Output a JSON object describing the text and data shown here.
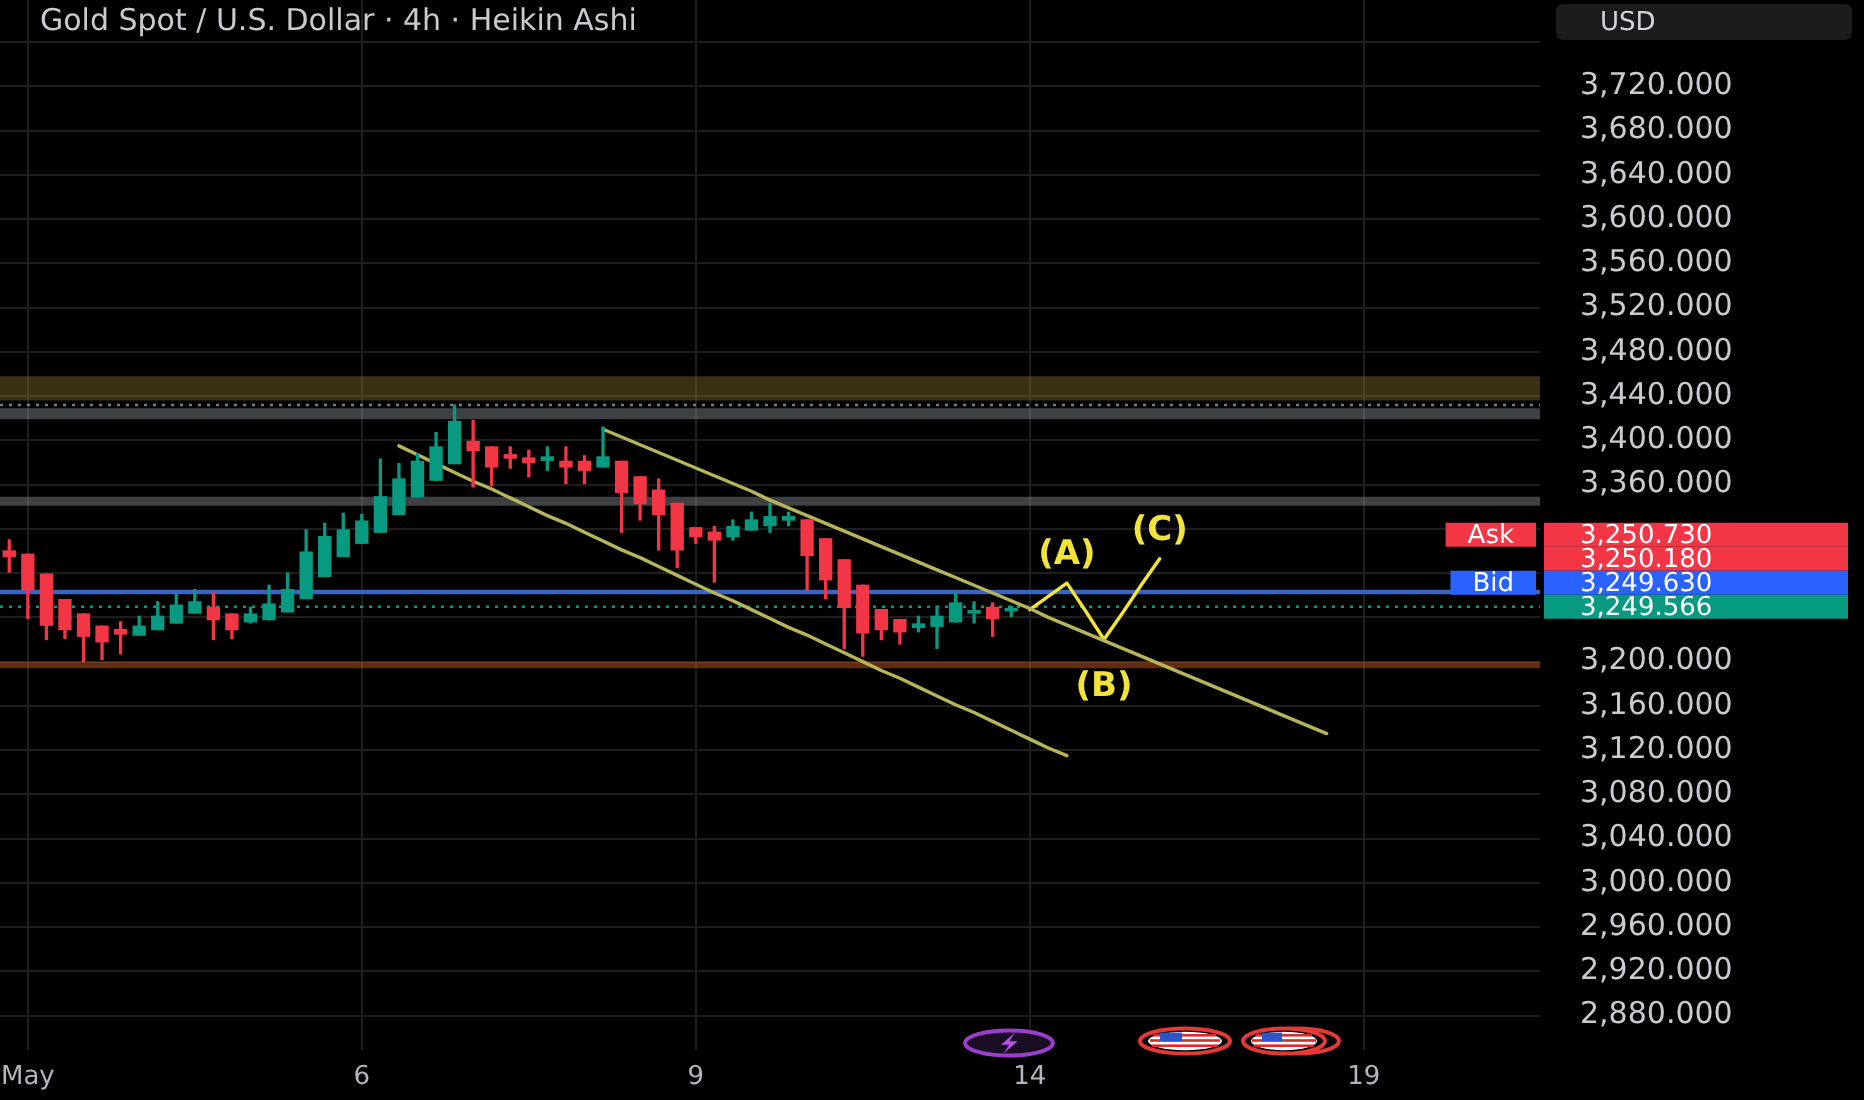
{
  "chart_data": {
    "type": "candlestick",
    "title": "Gold Spot / U.S. Dollar · 4h · Heikin Ashi",
    "ylabel": "USD",
    "categories": [
      null,
      "May",
      null,
      null,
      null,
      null,
      null,
      null,
      null,
      null,
      null,
      null,
      null,
      null,
      null,
      null,
      null,
      null,
      null,
      "6",
      null,
      null,
      null,
      null,
      null,
      null,
      null,
      null,
      null,
      null,
      null,
      null,
      null,
      null,
      null,
      null,
      null,
      "9",
      null,
      null,
      null,
      null,
      null,
      null,
      null,
      null,
      null,
      null,
      null,
      null,
      null,
      null,
      null,
      null,
      null,
      "14",
      null,
      null,
      null,
      null,
      null,
      null,
      null,
      null,
      null,
      null,
      null,
      null,
      null,
      null,
      null,
      null,
      null,
      "19",
      null,
      null,
      null,
      null,
      null,
      null,
      null,
      null,
      null
    ],
    "ohlc": [
      [
        3300,
        3310,
        3281,
        3295
      ],
      [
        3297,
        3297,
        3239,
        3265
      ],
      [
        3279,
        3279,
        3220,
        3233
      ],
      [
        3256,
        3256,
        3221,
        3229
      ],
      [
        3243,
        3243,
        3200,
        3223
      ],
      [
        3232,
        3232,
        3202,
        3218
      ],
      [
        3229,
        3236,
        3207,
        3225
      ],
      [
        3224,
        3241,
        3224,
        3232
      ],
      [
        3229,
        3254,
        3229,
        3241
      ],
      [
        3235,
        3261,
        3235,
        3251
      ],
      [
        3244,
        3265,
        3244,
        3254
      ],
      [
        3249,
        3262,
        3220,
        3238
      ],
      [
        3243,
        3243,
        3221,
        3229
      ],
      [
        3236,
        3249,
        3235,
        3243
      ],
      [
        3238,
        3269,
        3238,
        3252
      ],
      [
        3245,
        3280,
        3245,
        3265
      ],
      [
        3257,
        3319,
        3257,
        3299
      ],
      [
        3277,
        3325,
        3277,
        3313
      ],
      [
        3295,
        3334,
        3295,
        3319
      ],
      [
        3307,
        3333,
        3307,
        3327
      ],
      [
        3317,
        3383,
        3317,
        3349
      ],
      [
        3333,
        3379,
        3333,
        3365
      ],
      [
        3349,
        3388,
        3349,
        3381
      ],
      [
        3364,
        3407,
        3364,
        3394
      ],
      [
        3379,
        3432,
        3379,
        3417
      ],
      [
        3399,
        3418,
        3358,
        3391
      ],
      [
        3394,
        3394,
        3359,
        3376
      ],
      [
        3387,
        3394,
        3375,
        3384
      ],
      [
        3384,
        3391,
        3367,
        3380
      ],
      [
        3382,
        3394,
        3373,
        3385
      ],
      [
        3381,
        3394,
        3361,
        3376
      ],
      [
        3381,
        3386,
        3361,
        3373
      ],
      [
        3376,
        3412,
        3376,
        3385
      ],
      [
        3381,
        3381,
        3317,
        3353
      ],
      [
        3367,
        3367,
        3328,
        3343
      ],
      [
        3355,
        3365,
        3301,
        3333
      ],
      [
        3343,
        3343,
        3285,
        3301
      ],
      [
        3321,
        3321,
        3307,
        3313
      ],
      [
        3317,
        3322,
        3272,
        3310
      ],
      [
        3313,
        3328,
        3310,
        3322
      ],
      [
        3319,
        3335,
        3319,
        3328
      ],
      [
        3323,
        3343,
        3317,
        3331
      ],
      [
        3328,
        3335,
        3323,
        3331
      ],
      [
        3328,
        3328,
        3265,
        3296
      ],
      [
        3311,
        3311,
        3257,
        3274
      ],
      [
        3292,
        3292,
        3212,
        3249
      ],
      [
        3269,
        3269,
        3205,
        3226
      ],
      [
        3247,
        3247,
        3220,
        3229
      ],
      [
        3238,
        3238,
        3216,
        3227
      ],
      [
        3231,
        3241,
        3227,
        3234
      ],
      [
        3232,
        3250,
        3212,
        3241
      ],
      [
        3236,
        3262,
        3236,
        3253
      ],
      [
        3244,
        3254,
        3235,
        3246
      ],
      [
        3249,
        3253,
        3223,
        3239
      ],
      [
        3246,
        3250,
        3241,
        3248
      ],
      null,
      null,
      null,
      null,
      null,
      null,
      null,
      null,
      null,
      null,
      null,
      null,
      null,
      null,
      null,
      null,
      null,
      null,
      null,
      null,
      null,
      null,
      null,
      null,
      null,
      null,
      null,
      null
    ],
    "colors": [
      "#f23645",
      "#f23645",
      "#f23645",
      "#f23645",
      "#f23645",
      "#f23645",
      "#f23645",
      "#089981",
      "#089981",
      "#089981",
      "#089981",
      "#f23645",
      "#f23645",
      "#089981",
      "#089981",
      "#089981",
      "#089981",
      "#089981",
      "#089981",
      "#089981",
      "#089981",
      "#089981",
      "#089981",
      "#089981",
      "#089981",
      "#f23645",
      "#f23645",
      "#f23645",
      "#f23645",
      "#089981",
      "#f23645",
      "#f23645",
      "#089981",
      "#f23645",
      "#f23645",
      "#f23645",
      "#f23645",
      "#f23645",
      "#f23645",
      "#089981",
      "#089981",
      "#089981",
      "#089981",
      "#f23645",
      "#f23645",
      "#f23645",
      "#f23645",
      "#f23645",
      "#f23645",
      "#089981",
      "#089981",
      "#089981",
      "#089981",
      "#f23645",
      "#089981",
      null,
      null,
      null,
      null,
      null,
      null,
      null,
      null,
      null,
      null,
      null,
      null,
      null,
      null,
      null,
      null,
      null,
      null,
      null,
      null,
      null,
      null,
      null,
      null,
      null,
      null,
      null,
      null
    ],
    "series": [
      {
        "type": "line",
        "color": "#b8b45a",
        "values": [
          null,
          null,
          null,
          null,
          null,
          null,
          null,
          null,
          null,
          null,
          null,
          null,
          null,
          null,
          null,
          null,
          null,
          null,
          null,
          null,
          null,
          null,
          null,
          null,
          null,
          null,
          null,
          null,
          null,
          null,
          null,
          null,
          3410,
          3403,
          3396,
          3389,
          3382,
          3375,
          3368,
          3361,
          3354,
          3346,
          3339,
          3332,
          3325,
          3318,
          3311,
          3304,
          3297,
          3290,
          3283,
          3276,
          3269,
          3262,
          3255,
          3248,
          3240,
          3233,
          3226,
          3219,
          3212,
          3205,
          3198,
          3191,
          3184,
          3177,
          3170,
          3163,
          3156,
          3149,
          3142,
          3135,
          null,
          null,
          null,
          null,
          null,
          null,
          null,
          null,
          null,
          null,
          null
        ]
      },
      {
        "type": "line",
        "color": "#b8b45a",
        "values": [
          null,
          null,
          null,
          null,
          null,
          null,
          null,
          null,
          null,
          null,
          null,
          null,
          null,
          null,
          null,
          null,
          null,
          null,
          null,
          null,
          null,
          3395,
          3387,
          3379,
          3371,
          3363,
          3356,
          3348,
          3340,
          3332,
          3325,
          3317,
          3309,
          3301,
          3294,
          3286,
          3278,
          3270,
          3262,
          3255,
          3247,
          3239,
          3231,
          3224,
          3216,
          3208,
          3200,
          3192,
          3185,
          3177,
          3169,
          3161,
          3154,
          3146,
          3138,
          3130,
          3122,
          3115,
          null,
          null,
          null,
          null,
          null,
          null,
          null,
          null,
          null,
          null,
          null,
          null,
          null,
          null,
          null,
          null,
          null,
          null,
          null,
          null,
          null,
          null,
          null,
          null,
          null
        ]
      },
      {
        "type": "line",
        "color": "#f2e33a",
        "values": [
          null,
          null,
          null,
          null,
          null,
          null,
          null,
          null,
          null,
          null,
          null,
          null,
          null,
          null,
          null,
          null,
          null,
          null,
          null,
          null,
          null,
          null,
          null,
          null,
          null,
          null,
          null,
          null,
          null,
          null,
          null,
          null,
          null,
          null,
          null,
          null,
          null,
          null,
          null,
          null,
          null,
          null,
          null,
          null,
          null,
          null,
          null,
          null,
          null,
          null,
          null,
          null,
          null,
          null,
          null,
          3247,
          3259,
          3271,
          3246,
          3220,
          3244,
          3269,
          3293,
          null,
          null,
          null,
          null,
          null,
          null,
          null,
          null,
          null,
          null,
          null,
          null,
          null,
          null,
          null,
          null,
          null,
          null,
          null,
          null
        ]
      }
    ],
    "ylim": [
      2849,
      3798
    ],
    "yticks": [
      {
        "value": 2880,
        "label": "2,880.000"
      },
      {
        "value": 2920,
        "label": "2,920.000"
      },
      {
        "value": 2960,
        "label": "2,960.000"
      },
      {
        "value": 3000,
        "label": "3,000.000"
      },
      {
        "value": 3040,
        "label": "3,040.000"
      },
      {
        "value": 3080,
        "label": "3,080.000"
      },
      {
        "value": 3120,
        "label": "3,120.000"
      },
      {
        "value": 3160,
        "label": "3,160.000"
      },
      {
        "value": 3200,
        "label": "3,200.000"
      },
      {
        "value": 3240,
        "label": null
      },
      {
        "value": 3280,
        "label": null
      },
      {
        "value": 3320,
        "label": null
      },
      {
        "value": 3360,
        "label": "3,360.000"
      },
      {
        "value": 3400,
        "label": "3,400.000"
      },
      {
        "value": 3440,
        "label": "3,440.000"
      },
      {
        "value": 3480,
        "label": "3,480.000"
      },
      {
        "value": 3520,
        "label": "3,520.000"
      },
      {
        "value": 3560,
        "label": "3,560.000"
      },
      {
        "value": 3600,
        "label": "3,600.000"
      },
      {
        "value": 3640,
        "label": "3,640.000"
      },
      {
        "value": 3680,
        "label": "3,680.000"
      },
      {
        "value": 3720,
        "label": "3,720.000"
      },
      {
        "value": 3760,
        "label": null
      }
    ],
    "grid": true,
    "bands": [
      {
        "axis": "y",
        "from": 3436,
        "to": 3458,
        "color": "#8a7330"
      },
      {
        "axis": "y",
        "from": 3419,
        "to": 3429,
        "color": "#9598a1"
      },
      {
        "axis": "y",
        "from": 3341,
        "to": 3349,
        "color": "#9598a1"
      },
      {
        "axis": "y",
        "from": 3194,
        "to": 3200,
        "color": "#e8662c"
      }
    ],
    "ref_lines": [
      {
        "axis": "y",
        "value": 3432,
        "color": "#787b86",
        "line_style": "dotted"
      },
      {
        "axis": "y",
        "value": 3263,
        "color": "#3b63c4",
        "line_style": "solid"
      },
      {
        "axis": "y",
        "value": 3249.566,
        "label": "3,249.566",
        "color": "#089981",
        "line_style": "dotted"
      }
    ],
    "annotations": [
      "Ask",
      "3,250.730",
      "3,250.180",
      "Bid",
      "3,249.630",
      {
        "text": "(A)",
        "y": 3271
      },
      {
        "text": "(B)",
        "y": 3220
      },
      {
        "text": "(C)",
        "y": 3293
      }
    ]
  }
}
